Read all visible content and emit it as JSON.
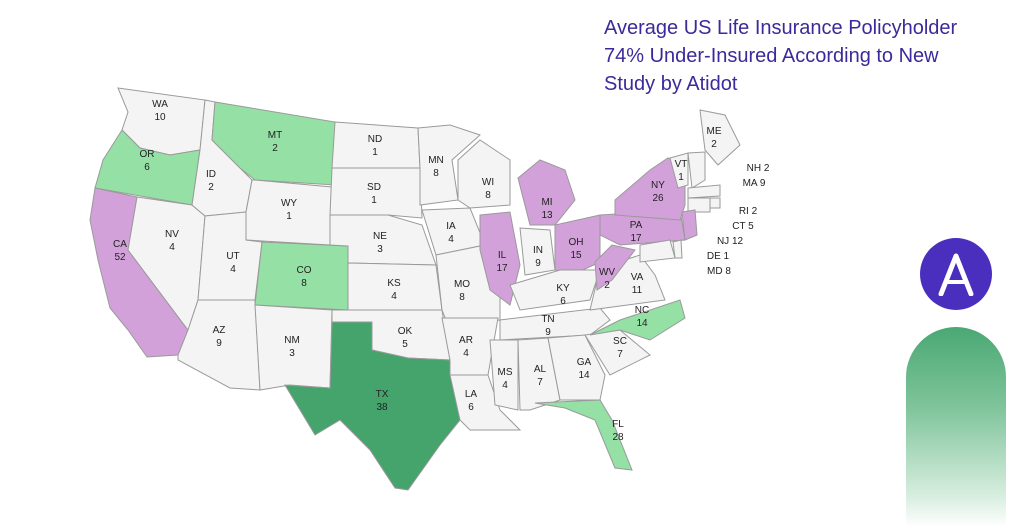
{
  "headline": {
    "line1": "Average US Life Insurance Policyholder",
    "line2": "74% Under-Insured According to New",
    "line3": "Study by Atidot"
  },
  "logo": {
    "icon": "atidot-a-logo-icon",
    "color": "#4a2fbf"
  },
  "legend_colors": {
    "default": "#f4f4f4",
    "green_light": "#94e0a5",
    "green_dark": "#45a36c",
    "purple": "#d3a1d9"
  },
  "states": [
    {
      "code": "WA",
      "value": "10",
      "color": "default"
    },
    {
      "code": "OR",
      "value": "6",
      "color": "green_light"
    },
    {
      "code": "CA",
      "value": "52",
      "color": "purple"
    },
    {
      "code": "NV",
      "value": "4",
      "color": "default"
    },
    {
      "code": "ID",
      "value": "2",
      "color": "default"
    },
    {
      "code": "MT",
      "value": "2",
      "color": "green_light"
    },
    {
      "code": "WY",
      "value": "1",
      "color": "default"
    },
    {
      "code": "UT",
      "value": "4",
      "color": "default"
    },
    {
      "code": "AZ",
      "value": "9",
      "color": "default"
    },
    {
      "code": "CO",
      "value": "8",
      "color": "green_light"
    },
    {
      "code": "NM",
      "value": "3",
      "color": "default"
    },
    {
      "code": "ND",
      "value": "1",
      "color": "default"
    },
    {
      "code": "SD",
      "value": "1",
      "color": "default"
    },
    {
      "code": "NE",
      "value": "3",
      "color": "default"
    },
    {
      "code": "KS",
      "value": "4",
      "color": "default"
    },
    {
      "code": "OK",
      "value": "5",
      "color": "default"
    },
    {
      "code": "TX",
      "value": "38",
      "color": "green_dark"
    },
    {
      "code": "MN",
      "value": "8",
      "color": "default"
    },
    {
      "code": "IA",
      "value": "4",
      "color": "default"
    },
    {
      "code": "MO",
      "value": "8",
      "color": "default"
    },
    {
      "code": "AR",
      "value": "4",
      "color": "default"
    },
    {
      "code": "LA",
      "value": "6",
      "color": "default"
    },
    {
      "code": "WI",
      "value": "8",
      "color": "default"
    },
    {
      "code": "IL",
      "value": "17",
      "color": "purple"
    },
    {
      "code": "MI",
      "value": "13",
      "color": "purple"
    },
    {
      "code": "IN",
      "value": "9",
      "color": "default"
    },
    {
      "code": "OH",
      "value": "15",
      "color": "purple"
    },
    {
      "code": "KY",
      "value": "6",
      "color": "default"
    },
    {
      "code": "TN",
      "value": "9",
      "color": "default"
    },
    {
      "code": "MS",
      "value": "4",
      "color": "default"
    },
    {
      "code": "AL",
      "value": "7",
      "color": "default"
    },
    {
      "code": "GA",
      "value": "14",
      "color": "default"
    },
    {
      "code": "FL",
      "value": "28",
      "color": "green_light"
    },
    {
      "code": "SC",
      "value": "7",
      "color": "default"
    },
    {
      "code": "NC",
      "value": "14",
      "color": "green_light"
    },
    {
      "code": "VA",
      "value": "11",
      "color": "default"
    },
    {
      "code": "WV",
      "value": "2",
      "color": "purple"
    },
    {
      "code": "PA",
      "value": "17",
      "color": "purple"
    },
    {
      "code": "NY",
      "value": "26",
      "color": "purple"
    },
    {
      "code": "VT",
      "value": "1",
      "color": "default"
    },
    {
      "code": "ME",
      "value": "2",
      "color": "default"
    },
    {
      "code": "NH",
      "value": "2",
      "color": "default"
    },
    {
      "code": "MA",
      "value": "9",
      "color": "default"
    },
    {
      "code": "RI",
      "value": "2",
      "color": "default"
    },
    {
      "code": "CT",
      "value": "5",
      "color": "default"
    },
    {
      "code": "NJ",
      "value": "12",
      "color": "purple"
    },
    {
      "code": "DE",
      "value": "1",
      "color": "default"
    },
    {
      "code": "MD",
      "value": "8",
      "color": "default"
    }
  ]
}
